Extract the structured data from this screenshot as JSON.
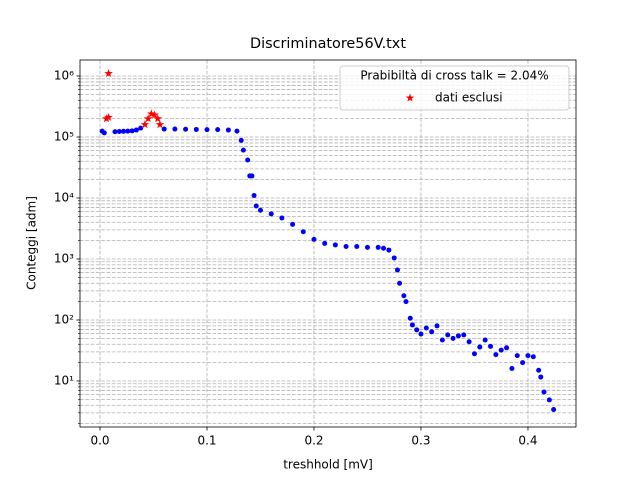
{
  "chart_data": {
    "type": "scatter",
    "title": "Discriminatore56V.txt",
    "x_label": "treshhold [mV]",
    "y_label": "Conteggi [adm]",
    "log_y": true,
    "grid": true,
    "minor_grid": true,
    "legend_corner": "upper right",
    "legend_title": "Prabibiltà di cross talk = 2.04%",
    "xlim": [
      -0.0187,
      0.4449
    ],
    "ylim": [
      1.76,
      1830000
    ],
    "xticks": [
      {
        "value": 0,
        "label": "0.0"
      },
      0.1,
      0.2,
      0.3,
      0.4
    ],
    "yticks": [
      {
        "value": 10,
        "label": "10¹"
      },
      {
        "value": 100,
        "label": "10²"
      },
      {
        "value": 1000,
        "label": "10³"
      },
      {
        "value": 10000,
        "label": "10⁴"
      },
      {
        "value": 100000,
        "label": "10⁵"
      },
      {
        "value": 1000000,
        "label": "10⁶"
      }
    ],
    "series": [
      {
        "color": "#0000ff",
        "marker": "circle",
        "x": [
          0.002,
          0.004,
          0.014,
          0.018,
          0.022,
          0.026,
          0.03,
          0.034,
          0.038,
          0.06,
          0.07,
          0.08,
          0.09,
          0.1,
          0.11,
          0.12,
          0.128,
          0.132,
          0.134,
          0.138,
          0.14,
          0.142,
          0.144,
          0.146,
          0.15,
          0.16,
          0.17,
          0.18,
          0.19,
          0.2,
          0.21,
          0.22,
          0.23,
          0.24,
          0.25,
          0.26,
          0.265,
          0.27,
          0.275,
          0.278,
          0.28,
          0.284,
          0.286,
          0.29,
          0.292,
          0.296,
          0.3,
          0.305,
          0.31,
          0.315,
          0.32,
          0.325,
          0.33,
          0.335,
          0.34,
          0.345,
          0.35,
          0.355,
          0.36,
          0.365,
          0.37,
          0.375,
          0.38,
          0.385,
          0.39,
          0.395,
          0.4,
          0.405,
          0.41,
          0.412,
          0.415,
          0.42,
          0.424
        ],
        "values": [
          125000,
          117000,
          122000,
          123000,
          124000,
          125000,
          126000,
          130000,
          140000,
          135000,
          135000,
          134000,
          133000,
          132000,
          132000,
          130000,
          125000,
          88000,
          61000,
          42000,
          23000,
          23000,
          11000,
          7400,
          6300,
          5500,
          4700,
          3700,
          2800,
          2100,
          1800,
          1700,
          1600,
          1600,
          1550,
          1550,
          1500,
          1400,
          1040,
          660,
          400,
          250,
          200,
          107,
          83,
          69,
          59,
          74,
          64,
          80,
          47,
          57,
          50,
          55,
          57,
          44,
          28,
          36,
          47,
          37,
          27,
          32,
          35,
          16,
          26,
          20,
          26,
          25,
          15,
          11.6,
          6.6,
          4.9,
          3.4
        ]
      },
      {
        "name": "dati esclusi",
        "color": "#ff0000",
        "marker": "star",
        "x": [
          0.006,
          0.008,
          0.008,
          0.042,
          0.045,
          0.048,
          0.051,
          0.054,
          0.056
        ],
        "values": [
          200000,
          210000,
          1100000,
          160000,
          200000,
          240000,
          230000,
          200000,
          160000
        ]
      }
    ]
  }
}
